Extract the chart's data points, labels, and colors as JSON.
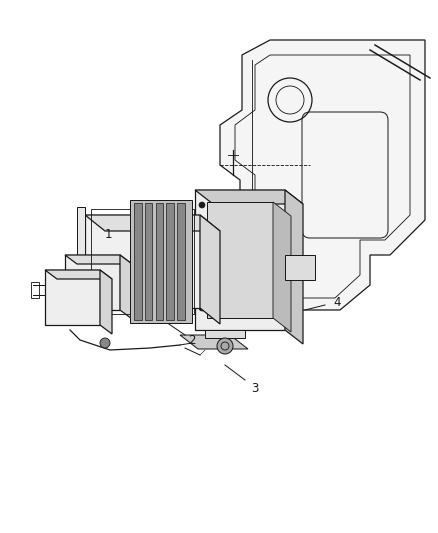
{
  "bg_color": "#ffffff",
  "line_color": "#1a1a1a",
  "line_width": 0.9,
  "fig_width": 4.39,
  "fig_height": 5.33,
  "label_fontsize": 8.5
}
